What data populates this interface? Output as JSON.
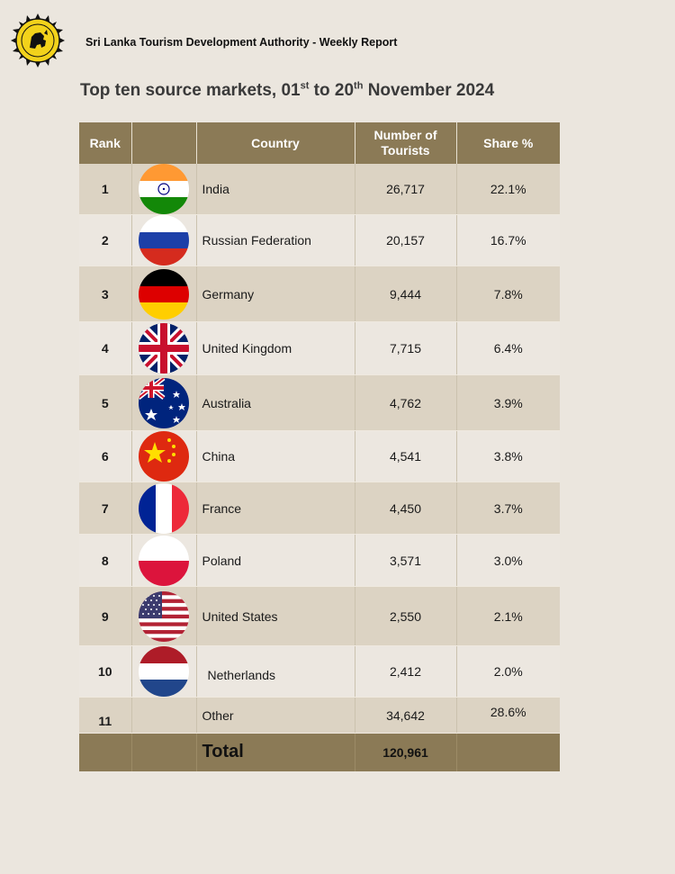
{
  "header": {
    "org_report": "Sri Lanka Tourism Development Authority - Weekly Report"
  },
  "title": {
    "part1": "Top ten source markets, 01",
    "sup1": "st",
    "part2": " to 20",
    "sup2": "th",
    "part3": " November 2024"
  },
  "table": {
    "headers": {
      "rank": "Rank",
      "country": "Country",
      "tourists": "Number of Tourists",
      "share": "Share %"
    },
    "rows": [
      {
        "rank": "1",
        "flag": "india-flag-icon",
        "country": "India",
        "tourists": "26,717",
        "share": "22.1%"
      },
      {
        "rank": "2",
        "flag": "russia-flag-icon",
        "country": "Russian Federation",
        "tourists": "20,157",
        "share": "16.7%"
      },
      {
        "rank": "3",
        "flag": "germany-flag-icon",
        "country": "Germany",
        "tourists": "9,444",
        "share": "7.8%"
      },
      {
        "rank": "4",
        "flag": "uk-flag-icon",
        "country": "United Kingdom",
        "tourists": "7,715",
        "share": "6.4%"
      },
      {
        "rank": "5",
        "flag": "australia-flag-icon",
        "country": "Australia",
        "tourists": "4,762",
        "share": "3.9%"
      },
      {
        "rank": "6",
        "flag": "china-flag-icon",
        "country": "China",
        "tourists": "4,541",
        "share": "3.8%"
      },
      {
        "rank": "7",
        "flag": "france-flag-icon",
        "country": "France",
        "tourists": "4,450",
        "share": "3.7%"
      },
      {
        "rank": "8",
        "flag": "poland-flag-icon",
        "country": "Poland",
        "tourists": "3,571",
        "share": "3.0%"
      },
      {
        "rank": "9",
        "flag": "usa-flag-icon",
        "country": "United States",
        "tourists": "2,550",
        "share": "2.1%"
      },
      {
        "rank": "10",
        "flag": "netherlands-flag-icon",
        "country": "Netherlands",
        "tourists": "2,412",
        "share": "2.0%"
      },
      {
        "rank": "11",
        "flag": "",
        "country": "Other",
        "tourists": "34,642",
        "share": "28.6%"
      }
    ],
    "total": {
      "label": "Total",
      "tourists": "120,961"
    }
  },
  "colors": {
    "header_bg": "#8b7a56",
    "row_dark": "#dcd3c3",
    "row_light": "#ece7e0",
    "page_bg": "#ebe6de",
    "logo_yellow": "#f2d21b"
  }
}
